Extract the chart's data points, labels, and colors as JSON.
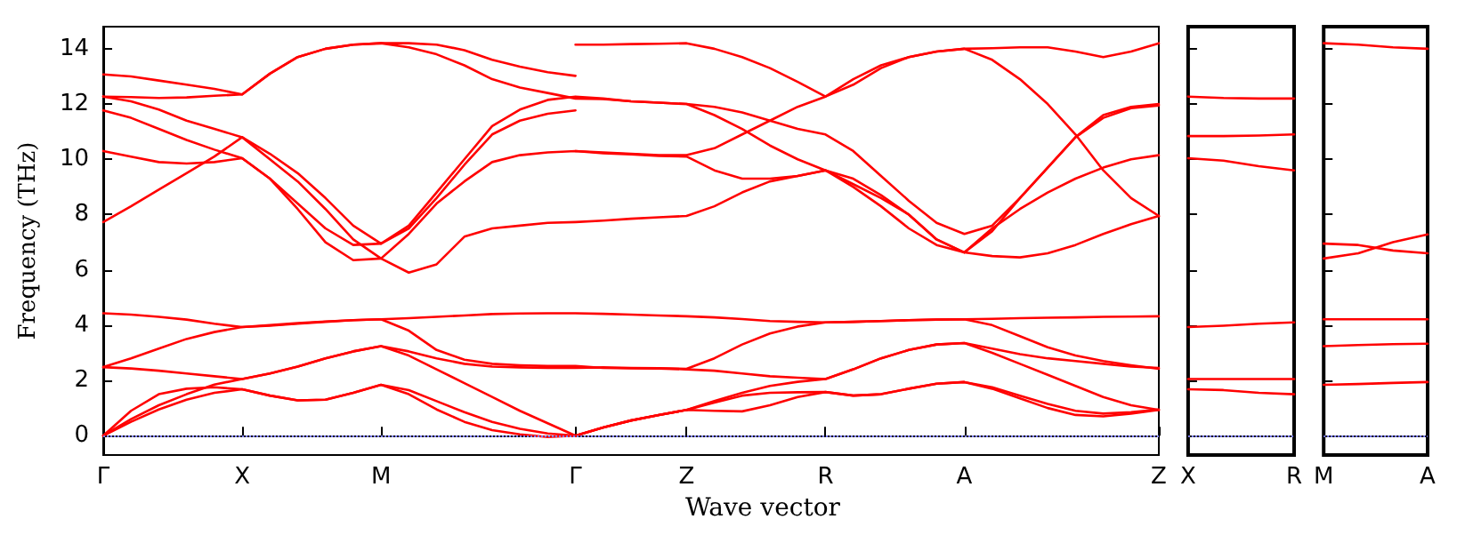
{
  "chart_data": [
    {
      "type": "line",
      "xlabel": "Wave vector",
      "ylabel": "Frequency (THz)",
      "ylim": [
        -0.7,
        14.8
      ],
      "yticks": [
        0,
        2,
        4,
        6,
        8,
        10,
        12,
        14
      ],
      "categories": [
        "Γ",
        null,
        null,
        null,
        null,
        "X",
        null,
        null,
        null,
        null,
        "M",
        null,
        null,
        null,
        null,
        null,
        null,
        "Γ",
        null,
        null,
        null,
        "Z",
        null,
        null,
        null,
        null,
        "R",
        null,
        null,
        null,
        null,
        "A",
        null,
        null,
        null,
        null,
        null,
        null,
        "Z"
      ],
      "ref_lines": [
        {
          "axis": "y",
          "value": 0,
          "label": null,
          "color": "#7f7fff",
          "line_style": "dotted"
        }
      ],
      "series": [
        {
          "color": "#ff0000",
          "values": [
            13.07,
            13.0,
            12.85,
            12.7,
            12.55,
            12.35,
            13.1,
            13.7,
            14.0,
            14.15,
            14.2,
            14.2,
            14.15,
            13.95,
            13.6,
            13.35,
            13.15,
            13.02,
            null,
            null,
            null,
            null,
            null,
            null,
            null,
            null,
            null,
            null,
            null,
            null,
            null,
            null,
            null,
            null,
            null,
            null,
            null,
            null,
            null
          ]
        },
        {
          "color": "#ff0000",
          "values": [
            11.77,
            11.5,
            11.1,
            10.7,
            10.35,
            10.04,
            9.3,
            8.4,
            7.5,
            6.9,
            6.95,
            7.5,
            8.6,
            9.8,
            10.9,
            11.4,
            11.65,
            11.77,
            null,
            null,
            null,
            null,
            null,
            null,
            null,
            null,
            null,
            null,
            null,
            null,
            null,
            null,
            null,
            null,
            null,
            null,
            null,
            null,
            null
          ]
        },
        {
          "color": "#ff0000",
          "values": [
            null,
            null,
            null,
            null,
            null,
            null,
            null,
            null,
            null,
            null,
            null,
            null,
            null,
            null,
            null,
            null,
            null,
            14.15,
            14.15,
            14.17,
            14.18,
            14.2,
            14.0,
            13.7,
            13.3,
            12.8,
            12.27,
            12.7,
            13.3,
            13.7,
            13.9,
            14.0,
            14.02,
            14.05,
            14.05,
            13.9,
            13.7,
            13.9,
            14.2
          ]
        },
        {
          "color": "#ff0000",
          "values": [
            null,
            null,
            null,
            null,
            null,
            null,
            null,
            null,
            null,
            null,
            null,
            null,
            null,
            null,
            null,
            null,
            null,
            10.3,
            10.25,
            10.2,
            10.15,
            10.15,
            10.4,
            10.9,
            11.4,
            11.9,
            12.27,
            12.9,
            13.4,
            13.7,
            13.9,
            14.0,
            13.6,
            12.9,
            12.0,
            10.9,
            9.6,
            8.6,
            7.95
          ]
        },
        {
          "color": "#ff0000",
          "values": [
            12.27,
            12.1,
            11.8,
            11.4,
            11.1,
            10.8,
            10.2,
            9.5,
            8.6,
            7.6,
            6.95,
            7.6,
            8.8,
            10.0,
            11.2,
            11.8,
            12.15,
            12.27,
            12.2,
            12.1,
            12.05,
            12.0,
            11.9,
            11.7,
            11.4,
            11.1,
            10.9,
            10.3,
            9.4,
            8.5,
            7.7,
            7.3,
            7.6,
            8.6,
            9.7,
            10.8,
            11.6,
            11.9,
            12.0
          ]
        },
        {
          "color": "#ff0000",
          "values": [
            12.27,
            12.25,
            12.22,
            12.24,
            12.3,
            12.35,
            13.1,
            13.7,
            14.0,
            14.15,
            14.2,
            14.05,
            13.8,
            13.4,
            12.9,
            12.6,
            12.4,
            12.2,
            12.18,
            12.1,
            12.05,
            12.0,
            11.6,
            11.1,
            10.5,
            10.0,
            9.6,
            9.3,
            8.7,
            8.0,
            7.1,
            6.63,
            7.5,
            8.2,
            8.8,
            9.3,
            9.7,
            10.0,
            10.15
          ]
        },
        {
          "color": "#ff0000",
          "values": [
            10.3,
            10.1,
            9.9,
            9.85,
            9.9,
            10.04,
            9.3,
            8.2,
            7.0,
            6.35,
            6.41,
            7.3,
            8.4,
            9.2,
            9.9,
            10.15,
            10.25,
            10.3,
            10.22,
            10.18,
            10.12,
            10.1,
            9.6,
            9.3,
            9.3,
            9.4,
            9.6,
            9.1,
            8.6,
            8.0,
            7.1,
            6.63,
            7.4,
            8.6,
            9.7,
            10.8,
            11.5,
            11.85,
            11.95
          ]
        },
        {
          "color": "#ff0000",
          "values": [
            7.73,
            8.3,
            8.9,
            9.5,
            10.1,
            10.8,
            10.0,
            9.2,
            8.2,
            7.1,
            6.41,
            5.9,
            6.2,
            7.2,
            7.5,
            7.6,
            7.7,
            7.73,
            7.78,
            7.85,
            7.9,
            7.95,
            8.3,
            8.8,
            9.2,
            9.4,
            9.6,
            9.0,
            8.3,
            7.5,
            6.9,
            6.63,
            6.5,
            6.45,
            6.6,
            6.9,
            7.3,
            7.65,
            7.95
          ]
        },
        {
          "color": "#ff0000",
          "values": [
            4.43,
            4.38,
            4.3,
            4.2,
            4.05,
            3.93,
            4.0,
            4.07,
            4.13,
            4.18,
            4.21,
            3.8,
            3.1,
            2.75,
            2.6,
            2.55,
            2.52,
            2.52,
            2.45,
            2.44,
            2.43,
            2.4,
            2.35,
            2.25,
            2.15,
            2.1,
            2.05,
            2.4,
            2.8,
            3.1,
            3.3,
            3.35,
            3.0,
            2.6,
            2.2,
            1.8,
            1.4,
            1.1,
            0.93
          ]
        },
        {
          "color": "#ff0000",
          "values": [
            2.48,
            2.8,
            3.15,
            3.5,
            3.75,
            3.93,
            3.98,
            4.05,
            4.12,
            4.18,
            4.21,
            4.25,
            4.3,
            4.35,
            4.4,
            4.42,
            4.43,
            4.43,
            4.41,
            4.38,
            4.35,
            4.32,
            4.28,
            4.22,
            4.15,
            4.12,
            4.1,
            4.12,
            4.15,
            4.18,
            4.2,
            4.21,
            4.0,
            3.6,
            3.2,
            2.9,
            2.7,
            2.55,
            2.42
          ]
        },
        {
          "color": "#ff0000",
          "values": [
            2.48,
            2.43,
            2.35,
            2.25,
            2.15,
            2.05,
            2.25,
            2.5,
            2.8,
            3.05,
            3.24,
            2.9,
            2.4,
            1.9,
            1.4,
            0.9,
            0.45,
            0,
            0.3,
            0.55,
            0.75,
            0.93,
            1.2,
            1.45,
            1.55,
            1.57,
            1.58,
            1.45,
            1.5,
            1.7,
            1.88,
            1.94,
            1.75,
            1.45,
            1.15,
            0.9,
            0.8,
            0.85,
            0.95
          ]
        },
        {
          "color": "#ff0000",
          "values": [
            0,
            0.6,
            1.1,
            1.5,
            1.85,
            2.05,
            2.25,
            2.5,
            2.8,
            3.05,
            3.24,
            3.05,
            2.8,
            2.6,
            2.5,
            2.47,
            2.45,
            2.45,
            2.47,
            2.45,
            2.44,
            2.42,
            2.8,
            3.3,
            3.7,
            3.95,
            4.1,
            4.12,
            4.15,
            4.18,
            4.2,
            4.21,
            4.23,
            4.25,
            4.27,
            4.28,
            4.3,
            4.31,
            4.32
          ]
        },
        {
          "color": "#ff0000",
          "values": [
            0,
            0.9,
            1.5,
            1.7,
            1.75,
            1.68,
            1.45,
            1.28,
            1.3,
            1.55,
            1.84,
            1.65,
            1.25,
            0.85,
            0.5,
            0.25,
            0.08,
            0,
            0.3,
            0.55,
            0.75,
            0.93,
            1.25,
            1.55,
            1.8,
            1.95,
            2.05,
            2.4,
            2.8,
            3.1,
            3.3,
            3.35,
            3.15,
            2.95,
            2.8,
            2.7,
            2.6,
            2.5,
            2.45
          ]
        },
        {
          "color": "#ff0000",
          "values": [
            0,
            0.5,
            0.95,
            1.3,
            1.55,
            1.68,
            1.45,
            1.28,
            1.3,
            1.55,
            1.84,
            1.5,
            0.95,
            0.5,
            0.2,
            0.05,
            -0.05,
            0,
            0.3,
            0.55,
            0.75,
            0.93,
            0.9,
            0.88,
            1.1,
            1.4,
            1.58,
            1.45,
            1.5,
            1.7,
            1.88,
            1.94,
            1.7,
            1.35,
            1.0,
            0.75,
            0.7,
            0.8,
            0.93
          ]
        }
      ]
    },
    {
      "type": "line",
      "tick_labels": "x",
      "ylim": [
        -0.7,
        14.8
      ],
      "yticks": [
        0,
        2,
        4,
        6,
        8,
        10,
        12,
        14
      ],
      "categories": [
        "X",
        null,
        null,
        "R"
      ],
      "ref_lines": [
        {
          "axis": "y",
          "value": 0,
          "label": null,
          "color": "#7f7fff",
          "line_style": "dotted"
        }
      ],
      "series": [
        {
          "color": "#ff0000",
          "values": [
            12.27,
            12.22,
            12.2,
            12.2
          ]
        },
        {
          "color": "#ff0000",
          "values": [
            10.84,
            10.84,
            10.86,
            10.9
          ]
        },
        {
          "color": "#ff0000",
          "values": [
            10.04,
            9.95,
            9.75,
            9.6
          ]
        },
        {
          "color": "#ff0000",
          "values": [
            3.93,
            3.98,
            4.05,
            4.1
          ]
        },
        {
          "color": "#ff0000",
          "values": [
            2.05,
            2.05,
            2.05,
            2.05
          ]
        },
        {
          "color": "#ff0000",
          "values": [
            1.68,
            1.65,
            1.55,
            1.5
          ]
        }
      ]
    },
    {
      "type": "line",
      "tick_labels": "x",
      "ylim": [
        -0.7,
        14.8
      ],
      "yticks": [
        0,
        2,
        4,
        6,
        8,
        10,
        12,
        14
      ],
      "categories": [
        "M",
        null,
        null,
        "A"
      ],
      "ref_lines": [
        {
          "axis": "y",
          "value": 0,
          "label": null,
          "color": "#7f7fff",
          "line_style": "dotted"
        }
      ],
      "series": [
        {
          "color": "#ff0000",
          "values": [
            14.2,
            14.15,
            14.05,
            14.0
          ]
        },
        {
          "color": "#ff0000",
          "values": [
            6.95,
            6.9,
            6.7,
            6.6
          ]
        },
        {
          "color": "#ff0000",
          "values": [
            6.41,
            6.6,
            7.0,
            7.28
          ]
        },
        {
          "color": "#ff0000",
          "values": [
            4.21,
            4.21,
            4.21,
            4.21
          ]
        },
        {
          "color": "#ff0000",
          "values": [
            3.24,
            3.28,
            3.31,
            3.33
          ]
        },
        {
          "color": "#ff0000",
          "values": [
            1.84,
            1.87,
            1.91,
            1.94
          ]
        }
      ]
    }
  ]
}
